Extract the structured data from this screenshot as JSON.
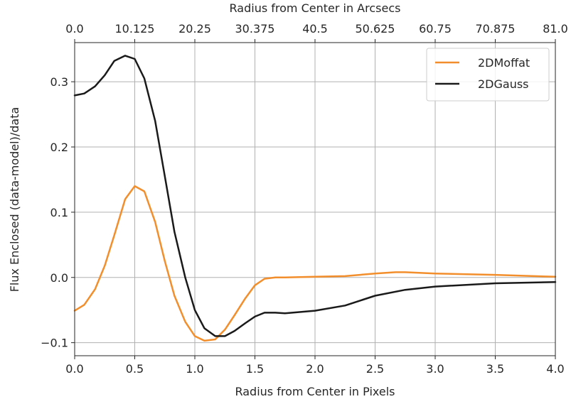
{
  "chart_data": {
    "type": "line",
    "xlabel": "Radius from Center in Pixels",
    "ylabel": "Flux Enclosed (data-model)/data",
    "top_xlabel": "Radius from Center in Arcsecs",
    "xlim": [
      0.0,
      4.0
    ],
    "ylim": [
      -0.12,
      0.36
    ],
    "grid": true,
    "legend_position": "upper right",
    "x_ticks": [
      0.0,
      0.5,
      1.0,
      1.5,
      2.0,
      2.5,
      3.0,
      3.5,
      4.0
    ],
    "x_tick_labels": [
      "0.0",
      "0.5",
      "1.0",
      "1.5",
      "2.0",
      "2.5",
      "3.0",
      "3.5",
      "4.0"
    ],
    "y_ticks": [
      -0.1,
      0.0,
      0.1,
      0.2,
      0.3
    ],
    "y_tick_labels": [
      "−0.1",
      "0.0",
      "0.1",
      "0.2",
      "0.3"
    ],
    "top_ticks": [
      0.0,
      0.5,
      1.0,
      1.5,
      2.0,
      2.5,
      3.0,
      3.5,
      4.0
    ],
    "top_tick_labels": [
      "0.0",
      "10.125",
      "20.25",
      "30.375",
      "40.5",
      "50.625",
      "60.75",
      "70.875",
      "81.0"
    ],
    "series": [
      {
        "name": "2DMoffat",
        "color": "#f28e2b",
        "x": [
          0.0,
          0.08,
          0.17,
          0.25,
          0.33,
          0.42,
          0.5,
          0.58,
          0.67,
          0.75,
          0.83,
          0.92,
          1.0,
          1.08,
          1.17,
          1.25,
          1.33,
          1.42,
          1.5,
          1.58,
          1.67,
          1.75,
          2.0,
          2.25,
          2.5,
          2.67,
          2.75,
          3.0,
          3.5,
          4.0
        ],
        "y": [
          -0.051,
          -0.042,
          -0.018,
          0.018,
          0.065,
          0.12,
          0.14,
          0.132,
          0.085,
          0.025,
          -0.028,
          -0.068,
          -0.09,
          -0.097,
          -0.095,
          -0.08,
          -0.058,
          -0.032,
          -0.012,
          -0.002,
          0.0,
          0.0,
          0.001,
          0.002,
          0.006,
          0.008,
          0.008,
          0.006,
          0.004,
          0.001
        ]
      },
      {
        "name": "2DGauss",
        "color": "#1a1a1a",
        "x": [
          0.0,
          0.08,
          0.17,
          0.25,
          0.33,
          0.42,
          0.5,
          0.58,
          0.67,
          0.75,
          0.83,
          0.92,
          1.0,
          1.08,
          1.17,
          1.25,
          1.33,
          1.42,
          1.5,
          1.58,
          1.67,
          1.75,
          2.0,
          2.25,
          2.5,
          2.75,
          3.0,
          3.5,
          4.0
        ],
        "y": [
          0.279,
          0.282,
          0.293,
          0.31,
          0.332,
          0.34,
          0.335,
          0.305,
          0.24,
          0.155,
          0.07,
          0.0,
          -0.05,
          -0.078,
          -0.09,
          -0.09,
          -0.082,
          -0.07,
          -0.06,
          -0.054,
          -0.054,
          -0.055,
          -0.051,
          -0.043,
          -0.028,
          -0.019,
          -0.014,
          -0.009,
          -0.007
        ]
      }
    ]
  }
}
